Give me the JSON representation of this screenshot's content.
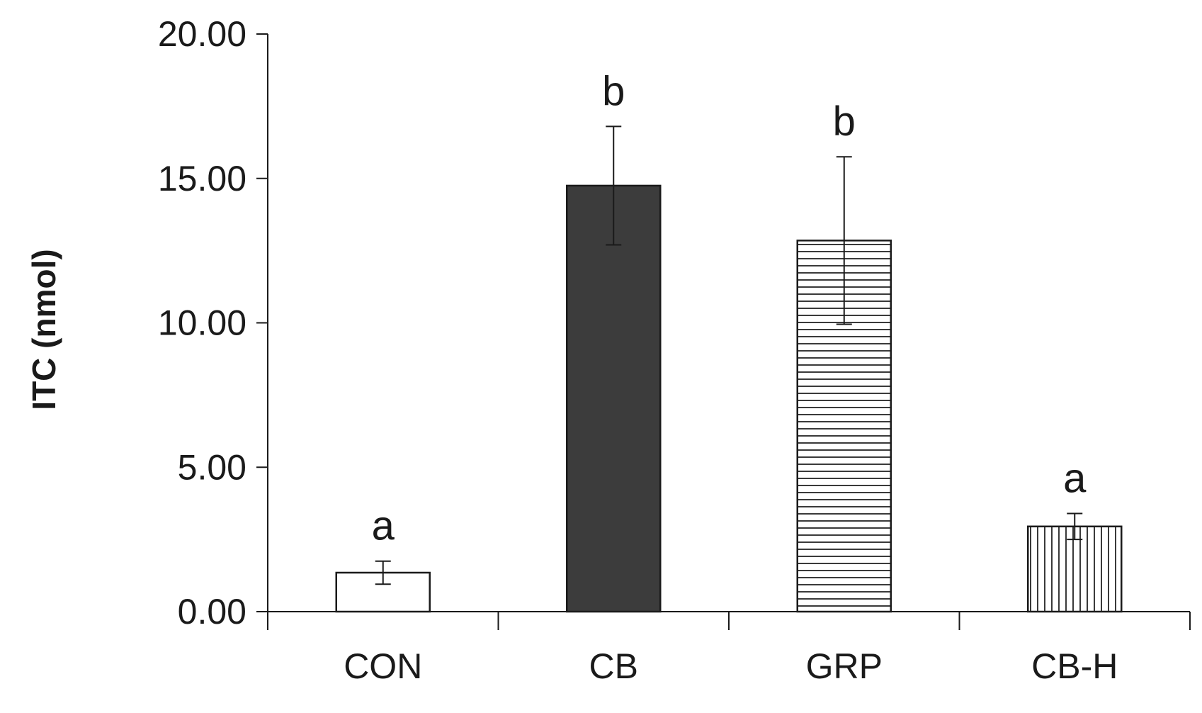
{
  "chart_data": {
    "type": "bar",
    "title": "",
    "xlabel": "",
    "ylabel": "ITC (nmol)",
    "ylim": [
      0,
      20
    ],
    "yticks": [
      "0.00",
      "5.00",
      "10.00",
      "15.00",
      "20.00"
    ],
    "categories": [
      "CON",
      "CB",
      "GRP",
      "CB-H"
    ],
    "values": [
      1.35,
      14.75,
      12.85,
      2.95
    ],
    "errors": [
      0.4,
      2.05,
      2.9,
      0.45
    ],
    "significance": [
      "a",
      "b",
      "b",
      "a"
    ],
    "fills": [
      "white",
      "solid",
      "horizontal-stripes",
      "vertical-stripes"
    ],
    "colors": {
      "solid": "#3c3c3c",
      "outline": "#1a1a1a",
      "stripe": "#3a3a3a"
    },
    "grid": false,
    "legend": "none"
  }
}
